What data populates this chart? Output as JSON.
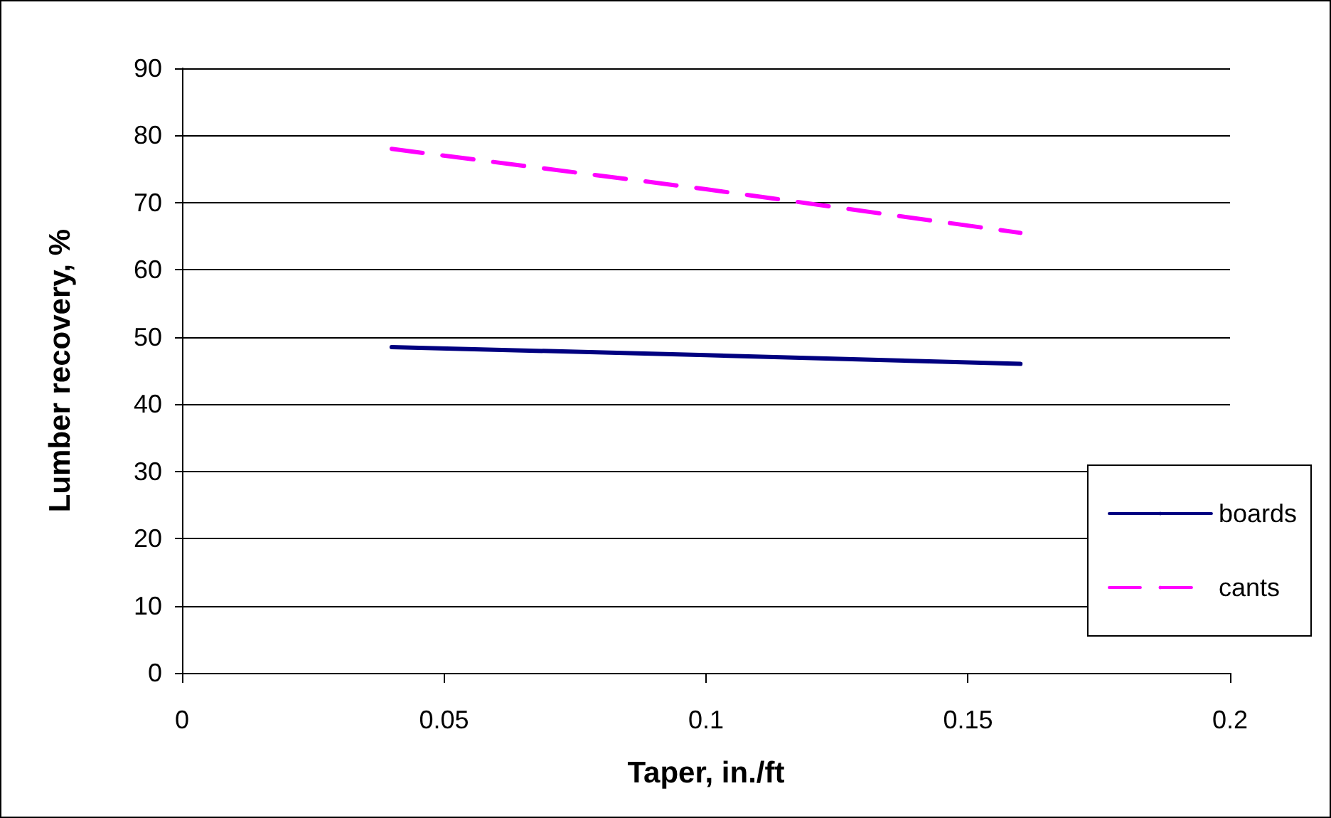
{
  "chart_data": {
    "type": "line",
    "xlabel": "Taper, in./ft",
    "ylabel": "Lumber recovery, %",
    "x": [
      0.04,
      0.1,
      0.16
    ],
    "series": [
      {
        "name": "boards",
        "color": "#000080",
        "values": [
          48.5,
          47.3,
          46
        ],
        "line_style": "solid"
      },
      {
        "name": "cants",
        "color": "#ff00ff",
        "values": [
          78,
          72,
          65.5
        ],
        "line_style": "dashed"
      }
    ],
    "xlim": [
      0,
      0.2
    ],
    "xticks": [
      0,
      0.05,
      0.1,
      0.15,
      0.2
    ],
    "ylim": [
      0,
      90
    ],
    "yticks": [
      0,
      10,
      20,
      30,
      40,
      50,
      60,
      70,
      80,
      90
    ],
    "grid": "y",
    "legend": "right",
    "marker": "none"
  }
}
